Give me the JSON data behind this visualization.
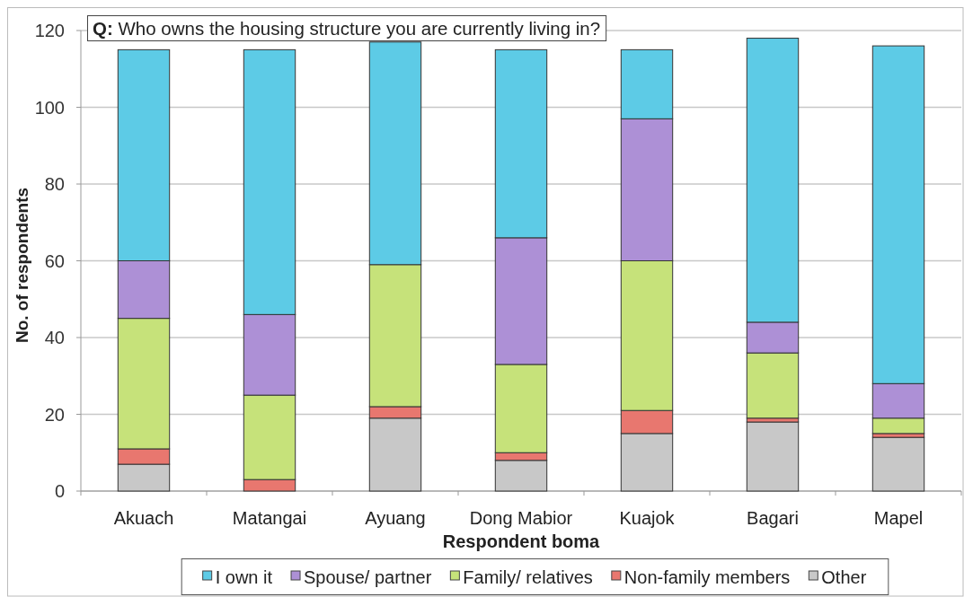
{
  "chart_data": {
    "type": "bar",
    "stacked": true,
    "title": "Q: Who owns the housing structure you are currently living in?",
    "xlabel": "Respondent boma",
    "ylabel": "No. of respondents",
    "categories": [
      "Akuach",
      "Matangai",
      "Ayuang",
      "Dong Mabior",
      "Kuajok",
      "Bagari",
      "Mapel"
    ],
    "series": [
      {
        "name": "Other",
        "color": "#c8c8c8",
        "values": [
          7,
          0,
          19,
          8,
          15,
          18,
          14
        ]
      },
      {
        "name": "Non-family members",
        "color": "#e8776f",
        "values": [
          4,
          3,
          3,
          2,
          6,
          1,
          1
        ]
      },
      {
        "name": "Family/ relatives",
        "color": "#c6e27a",
        "values": [
          34,
          22,
          37,
          23,
          39,
          17,
          4
        ]
      },
      {
        "name": "Spouse/ partner",
        "color": "#ad90d6",
        "values": [
          15,
          21,
          0,
          33,
          37,
          8,
          9
        ]
      },
      {
        "name": "I own it",
        "color": "#5dcbe6",
        "values": [
          55,
          69,
          58,
          49,
          18,
          74,
          88
        ]
      }
    ],
    "ylim": [
      0,
      120
    ],
    "yticks": [
      0,
      20,
      40,
      60,
      80,
      100,
      120
    ],
    "grid": "y",
    "legend": "bottom"
  }
}
